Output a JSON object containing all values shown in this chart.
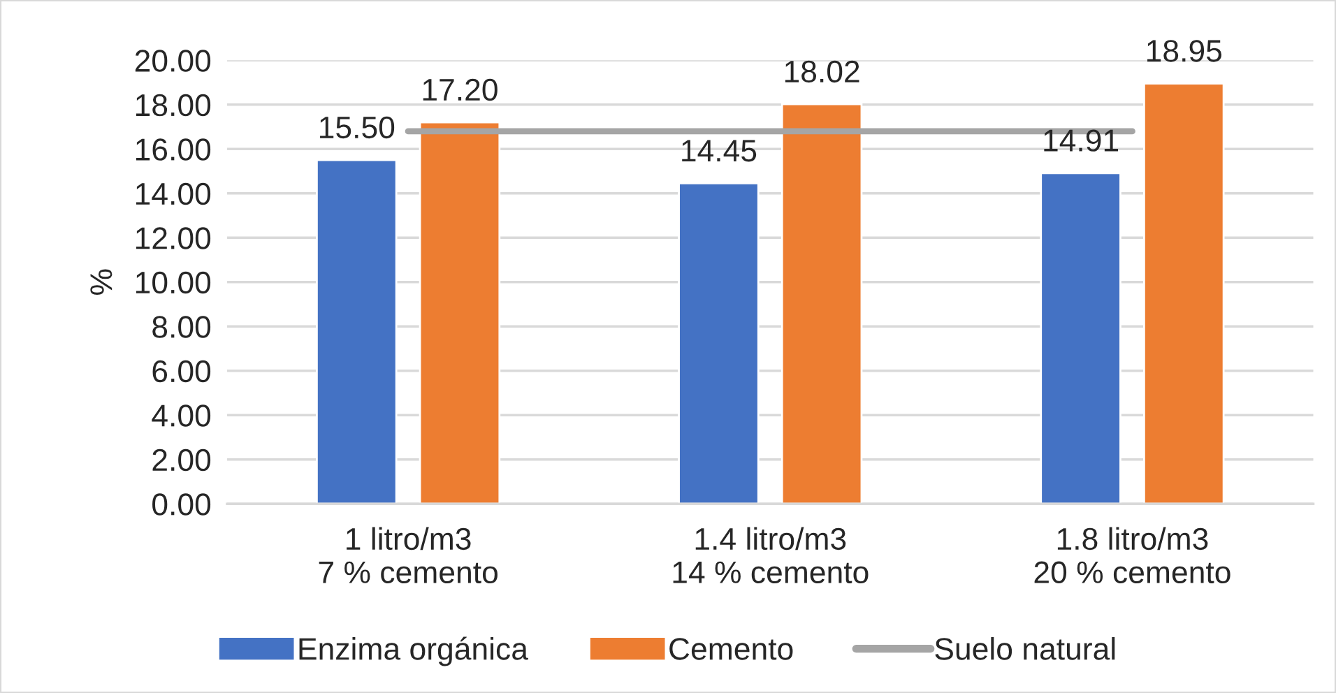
{
  "chart_data": {
    "type": "bar",
    "categories": [
      "1 litro/m3\n7 % cemento",
      "1.4 litro/m3\n14 % cemento",
      "1.8 litro/m3\n20 % cemento"
    ],
    "ylabel": "%",
    "series": [
      {
        "name": "Enzima orgánica",
        "color": "#4472c4",
        "values": [
          15.5,
          14.45,
          14.91
        ],
        "value_labels": [
          "15.50",
          "14.45",
          "14.91"
        ]
      },
      {
        "name": "Cemento",
        "color": "#ed7d31",
        "values": [
          17.2,
          18.02,
          18.95
        ],
        "value_labels": [
          "17.20",
          "18.02",
          "18.95"
        ]
      },
      {
        "name": "Suelo natural",
        "type": "line",
        "color": "#a5a5a5",
        "values": [
          16.8,
          16.8,
          16.8
        ]
      }
    ],
    "ylim": [
      0,
      20
    ],
    "yticks": [
      {
        "value": 0,
        "label": "0.00"
      },
      {
        "value": 2,
        "label": "2.00"
      },
      {
        "value": 4,
        "label": "4.00"
      },
      {
        "value": 6,
        "label": "6.00"
      },
      {
        "value": 8,
        "label": "8.00"
      },
      {
        "value": 10,
        "label": "10.00"
      },
      {
        "value": 12,
        "label": "12.00"
      },
      {
        "value": 14,
        "label": "14.00"
      },
      {
        "value": 16,
        "label": "16.00"
      },
      {
        "value": 18,
        "label": "18.00"
      },
      {
        "value": 20,
        "label": "20.00"
      }
    ],
    "grid": "y",
    "legend": "bottom"
  }
}
